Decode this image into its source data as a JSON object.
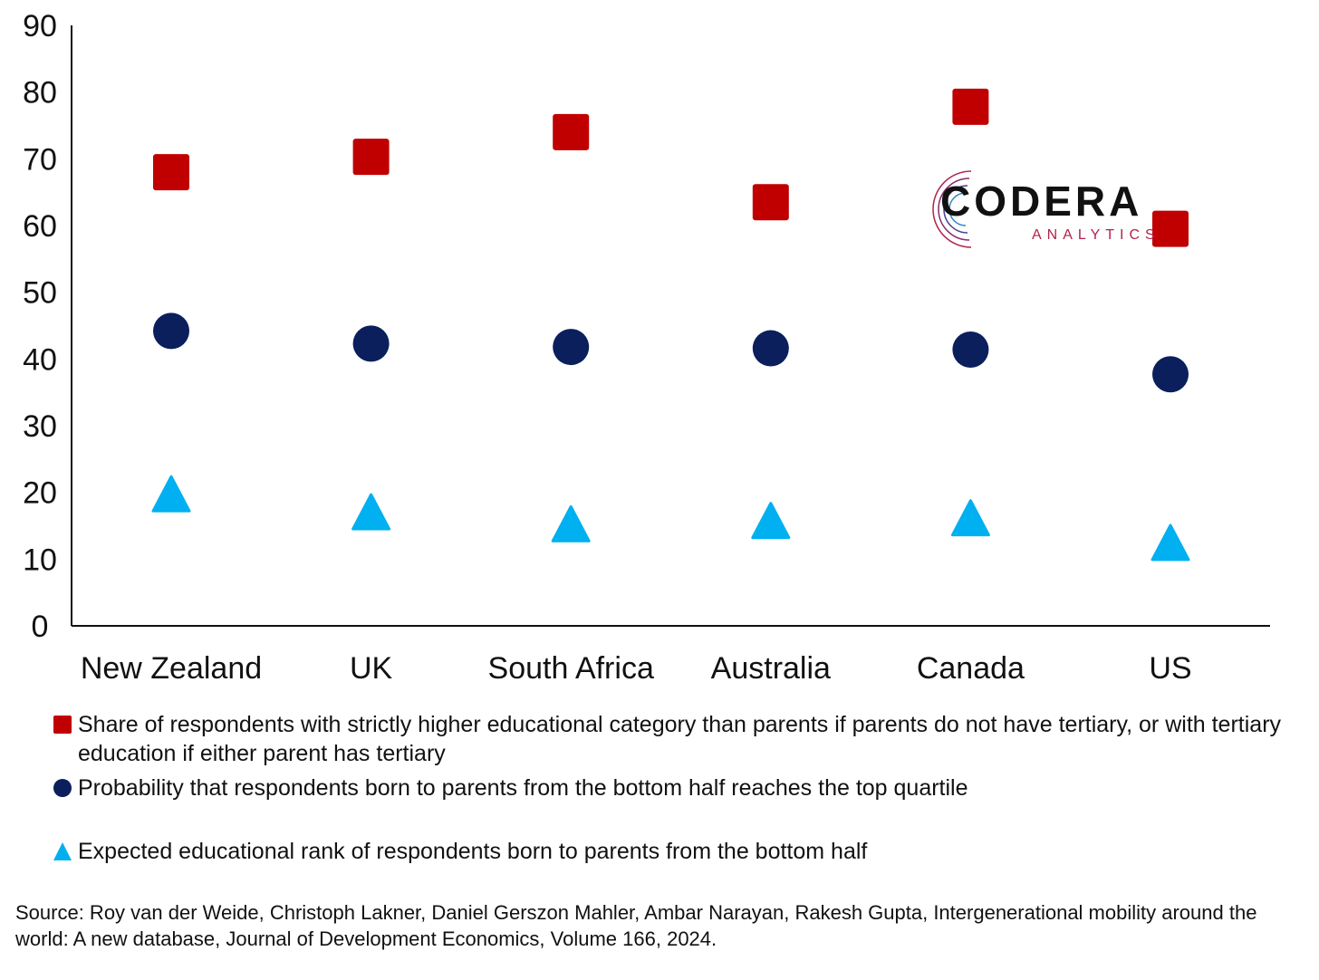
{
  "chart_data": {
    "type": "scatter",
    "categories": [
      "New Zealand",
      "UK",
      "South Africa",
      "Australia",
      "Canada",
      "US"
    ],
    "ylim": [
      0,
      90
    ],
    "yticks": [
      "0",
      "10",
      "20",
      "30",
      "40",
      "50",
      "60",
      "70",
      "80",
      "90"
    ],
    "grid": false,
    "legend_position": "bottom",
    "series": [
      {
        "name": "Share of respondents with strictly higher educational category than parents if parents do not have tertiary, or with tertiary education if either parent has tertiary",
        "marker": "square",
        "color": "#c00000",
        "values": [
          68,
          70.3,
          74,
          63.5,
          77.8,
          59.5
        ]
      },
      {
        "name": "Probability that respondents born to parents from the bottom half reaches the top quartile",
        "marker": "circle",
        "color": "#0a1f5c",
        "values": [
          44.2,
          42.3,
          41.8,
          41.6,
          41.4,
          37.7
        ]
      },
      {
        "name": "Expected educational rank of respondents born to parents from the bottom half",
        "marker": "triangle",
        "color": "#00b0f0",
        "values": [
          19.8,
          17.1,
          15.3,
          15.8,
          16.2,
          12.5
        ]
      }
    ]
  },
  "source": "Source: Roy van der Weide, Christoph Lakner, Daniel Gerszon Mahler, Ambar Narayan, Rakesh Gupta, Intergenerational mobility around the world: A new database, Journal of Development Economics, Volume 166, 2024.",
  "logo": {
    "name": "CODERA",
    "sub": "ANALYTICS"
  }
}
